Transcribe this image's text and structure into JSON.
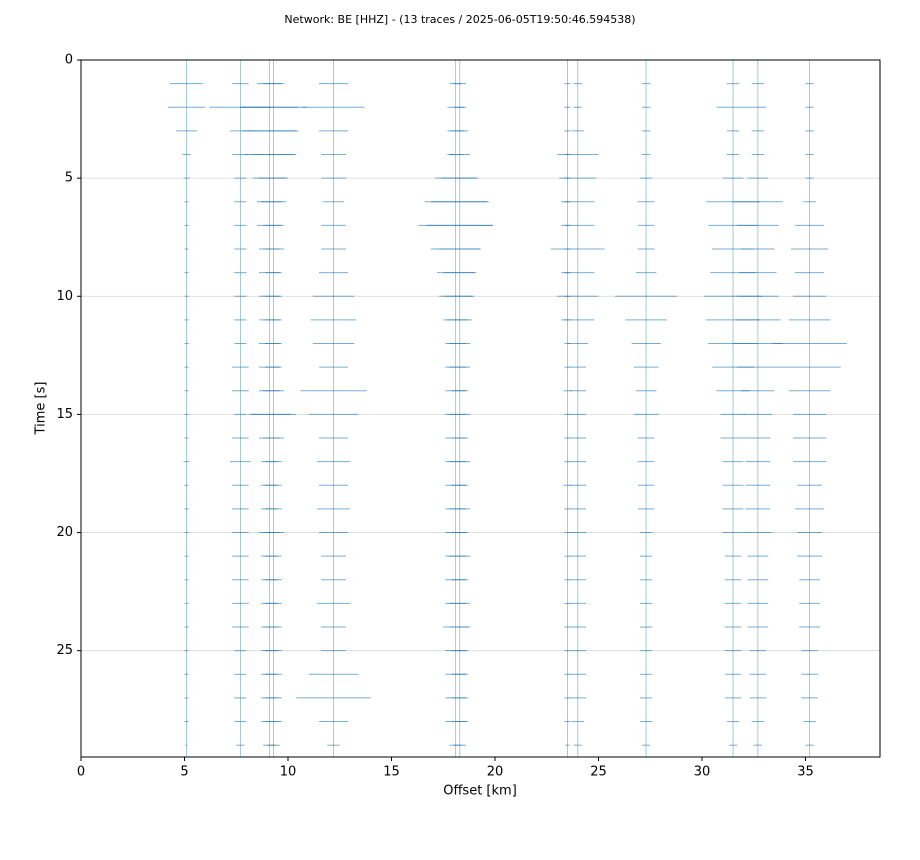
{
  "chart_data": {
    "type": "seismic",
    "title": "Network: BE [HHZ] - (13 traces / 2025-06-05T19:50:46.594538)",
    "xlabel": "Offset [km]",
    "ylabel": "Time [s]",
    "xlim": [
      0,
      38.6
    ],
    "xticks": [
      0,
      5,
      10,
      15,
      20,
      25,
      30,
      35
    ],
    "ylim": [
      29.5,
      0
    ],
    "yticks": [
      0,
      5,
      10,
      15,
      20,
      25
    ],
    "grid": true,
    "color": "#1f77b4",
    "times": [
      0,
      1,
      2,
      3,
      4,
      5,
      6,
      7,
      8,
      9,
      10,
      11,
      12,
      13,
      14,
      15,
      16,
      17,
      18,
      19,
      20,
      21,
      22,
      23,
      24,
      25,
      26,
      27,
      28,
      29
    ],
    "series": [
      {
        "offset": 5.1,
        "values": [
          0.1,
          0.8,
          0.9,
          0.5,
          0.2,
          0.15,
          0.1,
          0.1,
          0.1,
          0.1,
          0.1,
          0.1,
          0.1,
          0.1,
          0.1,
          0.1,
          0.1,
          0.15,
          0.1,
          0.1,
          0.1,
          0.1,
          0.1,
          0.1,
          0.1,
          0.1,
          0.1,
          0.1,
          0.1,
          0.05
        ]
      },
      {
        "offset": 7.7,
        "values": [
          0.1,
          0.4,
          1.5,
          0.5,
          0.4,
          0.3,
          0.3,
          0.3,
          0.3,
          0.3,
          0.3,
          0.3,
          0.3,
          0.4,
          0.4,
          0.3,
          0.4,
          0.5,
          0.4,
          0.4,
          0.4,
          0.4,
          0.4,
          0.4,
          0.4,
          0.3,
          0.3,
          0.3,
          0.3,
          0.2
        ]
      },
      {
        "offset": 9.1,
        "values": [
          0.2,
          0.6,
          1.4,
          1.3,
          1.2,
          0.8,
          0.6,
          0.6,
          0.5,
          0.5,
          0.5,
          0.5,
          0.5,
          0.5,
          0.5,
          1.0,
          0.5,
          0.4,
          0.4,
          0.4,
          0.5,
          0.4,
          0.4,
          0.4,
          0.4,
          0.4,
          0.4,
          0.4,
          0.4,
          0.3
        ]
      },
      {
        "offset": 9.3,
        "values": [
          0.2,
          0.5,
          1.6,
          1.2,
          1.1,
          0.7,
          0.6,
          0.5,
          0.5,
          0.4,
          0.4,
          0.4,
          0.4,
          0.4,
          0.5,
          1.1,
          0.5,
          0.4,
          0.4,
          0.4,
          0.5,
          0.4,
          0.4,
          0.4,
          0.4,
          0.4,
          0.4,
          0.4,
          0.4,
          0.3
        ]
      },
      {
        "offset": 12.2,
        "values": [
          0.1,
          0.7,
          1.5,
          0.7,
          0.6,
          0.6,
          0.5,
          0.6,
          0.6,
          0.7,
          1.0,
          1.1,
          1.0,
          0.7,
          1.6,
          1.2,
          0.7,
          0.8,
          0.7,
          0.8,
          0.7,
          0.6,
          0.6,
          0.8,
          0.6,
          0.6,
          1.2,
          1.8,
          0.7,
          0.3
        ]
      },
      {
        "offset": 18.1,
        "values": [
          0.1,
          0.3,
          0.4,
          0.4,
          0.4,
          1.0,
          1.5,
          1.8,
          1.2,
          0.9,
          0.8,
          0.6,
          0.5,
          0.5,
          0.5,
          0.5,
          0.5,
          0.5,
          0.5,
          0.5,
          0.5,
          0.5,
          0.5,
          0.5,
          0.6,
          0.5,
          0.5,
          0.5,
          0.5,
          0.3
        ]
      },
      {
        "offset": 18.3,
        "values": [
          0.1,
          0.3,
          0.3,
          0.4,
          0.5,
          0.9,
          1.4,
          1.6,
          1.0,
          0.8,
          0.7,
          0.6,
          0.5,
          0.5,
          0.4,
          0.5,
          0.4,
          0.5,
          0.4,
          0.5,
          0.4,
          0.5,
          0.4,
          0.5,
          0.5,
          0.4,
          0.4,
          0.4,
          0.4,
          0.3
        ]
      },
      {
        "offset": 23.5,
        "values": [
          0.1,
          0.15,
          0.15,
          0.15,
          0.15,
          0.15,
          0.15,
          0.15,
          0.15,
          0.15,
          0.15,
          0.15,
          0.15,
          0.15,
          0.2,
          0.15,
          0.15,
          0.15,
          0.2,
          0.15,
          0.15,
          0.15,
          0.15,
          0.15,
          0.15,
          0.15,
          0.15,
          0.15,
          0.15,
          0.1
        ]
      },
      {
        "offset": 24.0,
        "values": [
          0.1,
          0.2,
          0.2,
          0.3,
          1.0,
          0.9,
          0.8,
          0.8,
          1.3,
          0.8,
          1.0,
          0.8,
          0.5,
          0.4,
          0.4,
          0.4,
          0.4,
          0.4,
          0.4,
          0.4,
          0.4,
          0.4,
          0.4,
          0.4,
          0.4,
          0.4,
          0.4,
          0.4,
          0.3,
          0.2
        ]
      },
      {
        "offset": 27.3,
        "values": [
          0.1,
          0.2,
          0.2,
          0.2,
          0.2,
          0.3,
          0.4,
          0.4,
          0.4,
          0.5,
          1.5,
          1.0,
          0.7,
          0.6,
          0.5,
          0.6,
          0.4,
          0.4,
          0.4,
          0.4,
          0.3,
          0.3,
          0.3,
          0.3,
          0.3,
          0.3,
          0.3,
          0.3,
          0.3,
          0.2
        ]
      },
      {
        "offset": 31.5,
        "values": [
          0.1,
          0.3,
          0.8,
          0.3,
          0.3,
          0.5,
          1.3,
          1.2,
          1.0,
          1.1,
          1.4,
          1.3,
          1.2,
          1.0,
          0.8,
          0.6,
          0.6,
          0.5,
          0.5,
          0.5,
          0.5,
          0.4,
          0.4,
          0.4,
          0.4,
          0.4,
          0.4,
          0.4,
          0.3,
          0.2
        ]
      },
      {
        "offset": 32.7,
        "values": [
          0.1,
          0.3,
          0.4,
          0.3,
          0.3,
          0.5,
          1.2,
          1.0,
          0.8,
          0.9,
          1.0,
          1.1,
          1.2,
          1.0,
          0.8,
          0.7,
          0.6,
          0.6,
          0.6,
          0.6,
          0.7,
          0.5,
          0.5,
          0.5,
          0.5,
          0.4,
          0.4,
          0.4,
          0.3,
          0.2
        ]
      },
      {
        "offset": 35.2,
        "values": [
          0.1,
          0.2,
          0.2,
          0.2,
          0.2,
          0.2,
          0.3,
          0.7,
          0.9,
          0.7,
          0.8,
          1.0,
          1.8,
          1.5,
          1.0,
          0.8,
          0.8,
          0.8,
          0.6,
          0.7,
          0.6,
          0.6,
          0.5,
          0.5,
          0.5,
          0.4,
          0.4,
          0.4,
          0.3,
          0.2
        ]
      }
    ]
  }
}
